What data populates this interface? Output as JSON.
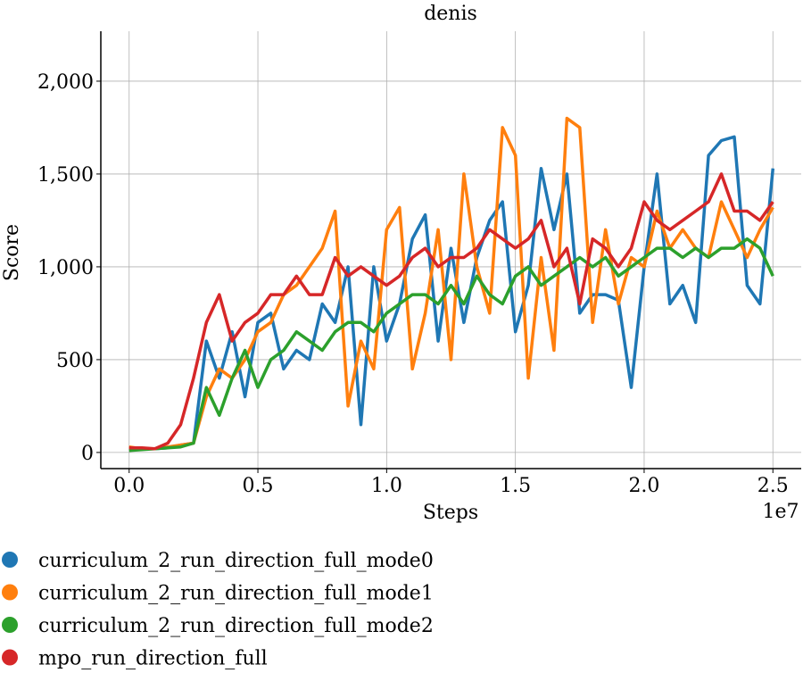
{
  "chart_data": {
    "type": "line",
    "title": "denis",
    "x_label": "Steps",
    "y_label": "Score",
    "x_offset_label": "1e7",
    "x": [
      0,
      0.05,
      0.1,
      0.15,
      0.2,
      0.25,
      0.3,
      0.35,
      0.4,
      0.45,
      0.5,
      0.55,
      0.6,
      0.65,
      0.7,
      0.75,
      0.8,
      0.85,
      0.9,
      0.95,
      1.0,
      1.05,
      1.1,
      1.15,
      1.2,
      1.25,
      1.3,
      1.35,
      1.4,
      1.45,
      1.5,
      1.55,
      1.6,
      1.65,
      1.7,
      1.75,
      1.8,
      1.85,
      1.9,
      1.95,
      2.0,
      2.05,
      2.1,
      2.15,
      2.2,
      2.25,
      2.3,
      2.35,
      2.4,
      2.45,
      2.5
    ],
    "series": [
      {
        "name": "curriculum_2_run_direction_full_mode0",
        "color": "#1f77b4",
        "values": [
          20,
          20,
          20,
          25,
          40,
          50,
          600,
          400,
          650,
          300,
          700,
          750,
          450,
          550,
          500,
          800,
          700,
          1000,
          150,
          1000,
          600,
          800,
          1150,
          1280,
          600,
          1100,
          700,
          1050,
          1250,
          1350,
          650,
          900,
          1530,
          1200,
          1500,
          750,
          850,
          850,
          820,
          350,
          1000,
          1500,
          800,
          900,
          700,
          1600,
          1680,
          1700,
          900,
          800,
          1530
        ]
      },
      {
        "name": "curriculum_2_run_direction_full_mode1",
        "color": "#ff7f0e",
        "values": [
          30,
          20,
          20,
          30,
          40,
          50,
          300,
          450,
          400,
          500,
          650,
          700,
          850,
          900,
          1000,
          1100,
          1300,
          250,
          600,
          450,
          1200,
          1320,
          450,
          750,
          1200,
          500,
          1500,
          1000,
          750,
          1750,
          1600,
          400,
          1050,
          550,
          1800,
          1750,
          700,
          1200,
          800,
          1050,
          1000,
          1300,
          1100,
          1200,
          1100,
          1050,
          1350,
          1200,
          1050,
          1200,
          1320
        ]
      },
      {
        "name": "curriculum_2_run_direction_full_mode2",
        "color": "#2ca02c",
        "values": [
          10,
          15,
          20,
          25,
          30,
          50,
          350,
          200,
          400,
          550,
          350,
          500,
          550,
          650,
          600,
          550,
          650,
          700,
          700,
          650,
          750,
          800,
          850,
          850,
          800,
          900,
          800,
          950,
          850,
          800,
          950,
          1000,
          900,
          950,
          1000,
          1050,
          1000,
          1050,
          950,
          1000,
          1050,
          1100,
          1100,
          1050,
          1100,
          1050,
          1100,
          1100,
          1150,
          1100,
          950
        ]
      },
      {
        "name": "mpo_run_direction_full",
        "color": "#d62728",
        "values": [
          25,
          25,
          20,
          50,
          150,
          400,
          700,
          850,
          600,
          700,
          750,
          850,
          850,
          950,
          850,
          850,
          1050,
          950,
          1000,
          950,
          900,
          950,
          1050,
          1100,
          1000,
          1050,
          1050,
          1100,
          1200,
          1150,
          1100,
          1150,
          1250,
          1000,
          1100,
          800,
          1150,
          1100,
          1000,
          1100,
          1350,
          1250,
          1200,
          1250,
          1300,
          1350,
          1500,
          1300,
          1300,
          1250,
          1350
        ]
      }
    ],
    "xlim": [
      -0.11,
      2.61
    ],
    "ylim": [
      -87,
      2269
    ],
    "xticks": [
      {
        "value": 0,
        "label": "0.0"
      },
      0.5,
      {
        "value": 1,
        "label": "1.0"
      },
      1.5,
      {
        "value": 2,
        "label": "2.0"
      },
      2.5
    ],
    "yticks": [
      0,
      500,
      {
        "value": 1000,
        "label": "1,000"
      },
      {
        "value": 1500,
        "label": "1,500"
      },
      {
        "value": 2000,
        "label": "2,000"
      }
    ],
    "grid": true
  }
}
